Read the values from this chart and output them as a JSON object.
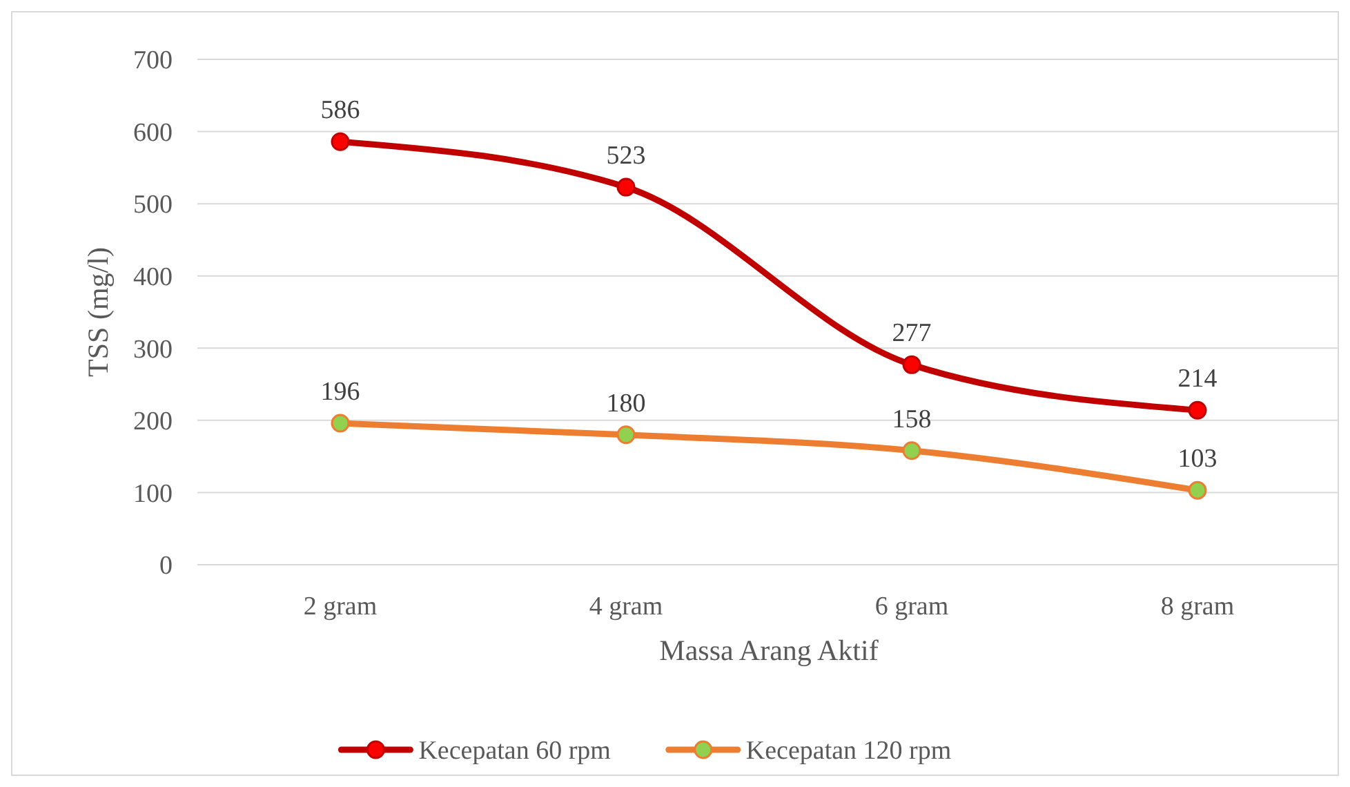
{
  "chart_data": {
    "type": "line",
    "xlabel": "Massa Arang Aktif",
    "ylabel": "TSS (mg/l)",
    "categories": [
      "2 gram",
      "4 gram",
      "6 gram",
      "8 gram"
    ],
    "series": [
      {
        "name": "Kecepatan 60 rpm",
        "color": "#c00000",
        "values": [
          586,
          523,
          277,
          214
        ]
      },
      {
        "name": "Kecepatan 120 rpm",
        "color": "#ed7d31",
        "values": [
          196,
          180,
          158,
          103
        ]
      }
    ],
    "ylim": [
      0,
      700
    ],
    "yticks": [
      0,
      100,
      200,
      300,
      400,
      500,
      600,
      700
    ],
    "grid": "y",
    "legend": "bottom",
    "marker": "circle",
    "data_labels": true
  }
}
